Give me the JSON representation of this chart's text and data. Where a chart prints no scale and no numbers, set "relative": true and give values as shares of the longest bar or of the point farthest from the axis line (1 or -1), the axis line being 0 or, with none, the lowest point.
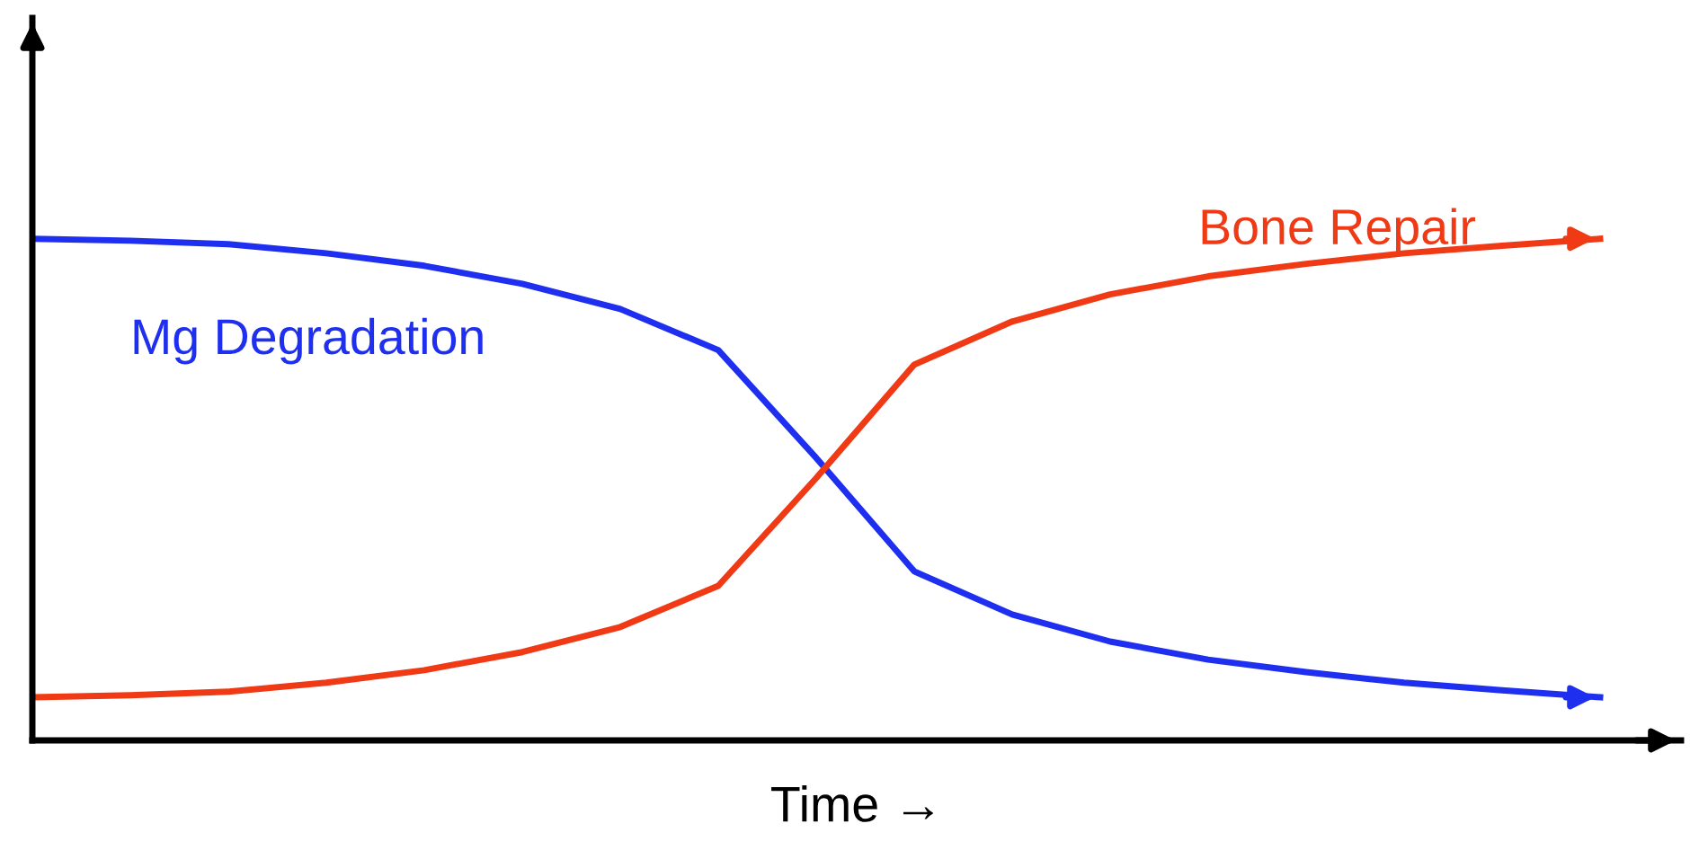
{
  "chart_data": {
    "type": "line",
    "relative": true,
    "xlabel": "Time →",
    "marker": "none",
    "line_style": "solid",
    "categories": [
      null,
      null,
      null,
      null,
      null,
      null,
      null,
      null,
      null,
      null,
      null,
      null,
      null,
      null,
      null,
      null,
      null
    ],
    "series": [
      {
        "name": "Mg Degradation",
        "color": "#1f2ff0",
        "values": [
          1,
          0.996,
          0.989,
          0.971,
          0.946,
          0.91,
          0.86,
          0.778,
          0.563,
          0.337,
          0.251,
          0.197,
          0.161,
          0.136,
          0.115,
          0.1,
          0.086
        ]
      },
      {
        "name": "Bone Repair",
        "color": "#f03a16",
        "values": [
          0.086,
          0.09,
          0.097,
          0.115,
          0.14,
          0.176,
          0.226,
          0.308,
          0.523,
          0.749,
          0.835,
          0.889,
          0.925,
          0.95,
          0.971,
          0.986,
          1
        ]
      }
    ]
  }
}
